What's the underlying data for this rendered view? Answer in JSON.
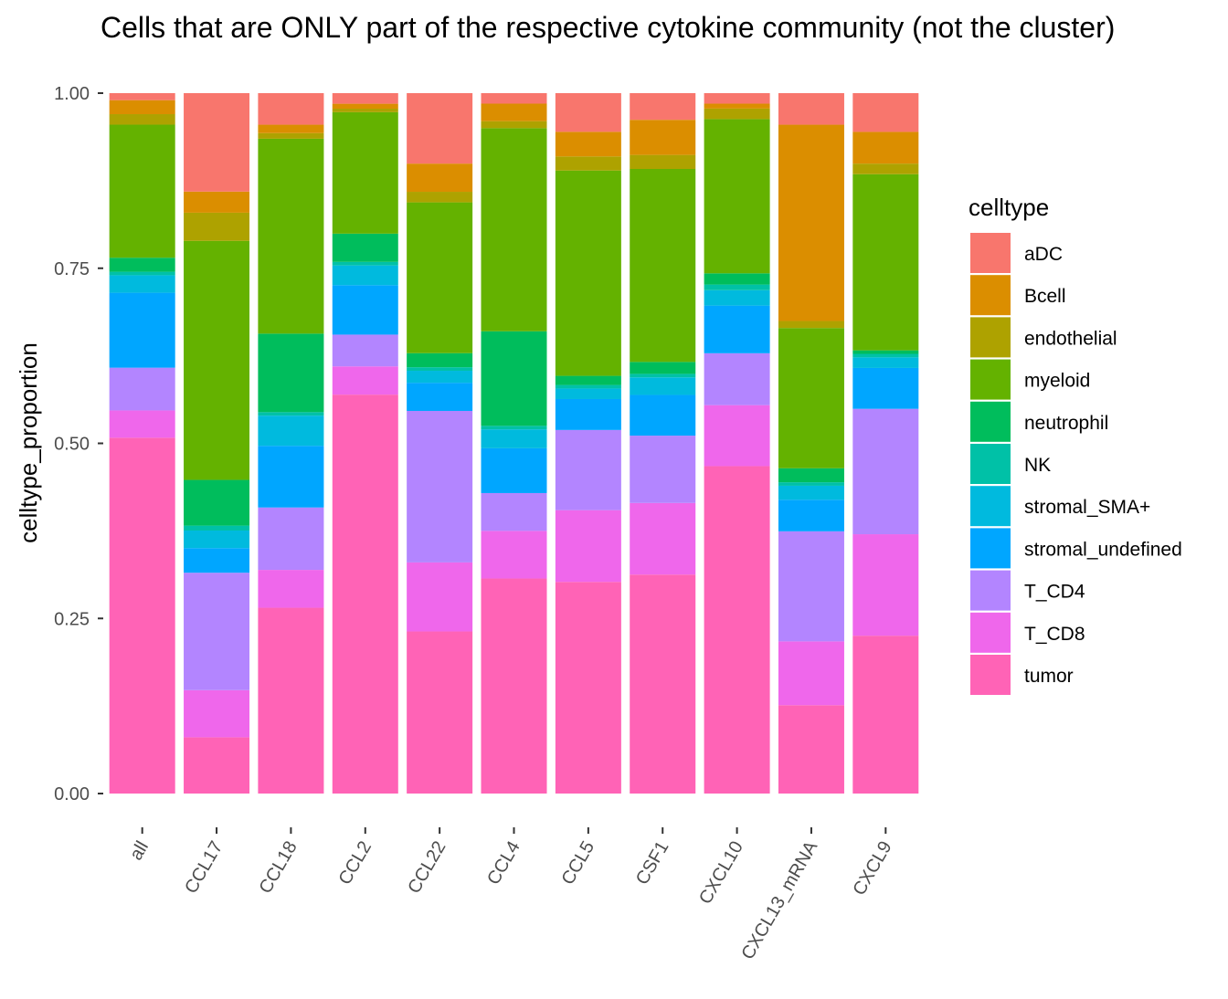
{
  "chart_data": {
    "type": "bar",
    "stacked": true,
    "title": "Cells that are ONLY part of the respective cytokine community (not the cluster)",
    "xlabel": "",
    "ylabel": "celltype_proportion",
    "ylim": [
      0,
      1
    ],
    "yticks": [
      "0.00",
      "0.25",
      "0.50",
      "0.75",
      "1.00"
    ],
    "ytick_values": [
      0,
      0.25,
      0.5,
      0.75,
      1.0
    ],
    "grid": false,
    "legend": {
      "title": "celltype",
      "position": "right"
    },
    "categories": [
      "all",
      "CCL17",
      "CCL18",
      "CCL2",
      "CCL22",
      "CCL4",
      "CCL5",
      "CSF1",
      "CXCL10",
      "CXCL13_mRNA",
      "CXCL9"
    ],
    "series": [
      {
        "name": "aDC",
        "color": "#F8766D",
        "values": [
          0.01,
          0.14,
          0.045,
          0.015,
          0.1,
          0.015,
          0.055,
          0.038,
          0.015,
          0.045,
          0.055
        ]
      },
      {
        "name": "Bcell",
        "color": "#DB8E00",
        "values": [
          0.02,
          0.03,
          0.012,
          0.007,
          0.04,
          0.025,
          0.035,
          0.05,
          0.007,
          0.28,
          0.045
        ]
      },
      {
        "name": "endothelial",
        "color": "#AEA200",
        "values": [
          0.015,
          0.04,
          0.008,
          0.005,
          0.015,
          0.01,
          0.02,
          0.02,
          0.015,
          0.01,
          0.015
        ]
      },
      {
        "name": "myeloid",
        "color": "#64B200",
        "values": [
          0.19,
          0.34,
          0.278,
          0.172,
          0.214,
          0.29,
          0.292,
          0.275,
          0.22,
          0.2,
          0.25
        ]
      },
      {
        "name": "neutrophil",
        "color": "#00BD5C",
        "values": [
          0.02,
          0.065,
          0.112,
          0.04,
          0.02,
          0.135,
          0.013,
          0.017,
          0.016,
          0.02,
          0.005
        ]
      },
      {
        "name": "NK",
        "color": "#00C1A7",
        "values": [
          0.005,
          0.007,
          0.005,
          0.005,
          0.005,
          0.005,
          0.005,
          0.005,
          0.008,
          0.005,
          0.005
        ]
      },
      {
        "name": "stromal_SMA+",
        "color": "#00BADE",
        "values": [
          0.025,
          0.025,
          0.043,
          0.028,
          0.017,
          0.027,
          0.015,
          0.025,
          0.022,
          0.02,
          0.015
        ]
      },
      {
        "name": "stromal_undefined",
        "color": "#00A6FF",
        "values": [
          0.107,
          0.035,
          0.088,
          0.07,
          0.04,
          0.064,
          0.044,
          0.058,
          0.068,
          0.045,
          0.058
        ]
      },
      {
        "name": "T_CD4",
        "color": "#B385FF",
        "values": [
          0.061,
          0.167,
          0.089,
          0.045,
          0.215,
          0.054,
          0.114,
          0.096,
          0.074,
          0.157,
          0.178
        ]
      },
      {
        "name": "T_CD8",
        "color": "#EF67EB",
        "values": [
          0.039,
          0.067,
          0.054,
          0.04,
          0.098,
          0.068,
          0.102,
          0.102,
          0.087,
          0.091,
          0.144
        ]
      },
      {
        "name": "tumor",
        "color": "#FF63B6",
        "values": [
          0.508,
          0.08,
          0.265,
          0.565,
          0.23,
          0.307,
          0.301,
          0.312,
          0.467,
          0.126,
          0.224
        ]
      }
    ]
  }
}
